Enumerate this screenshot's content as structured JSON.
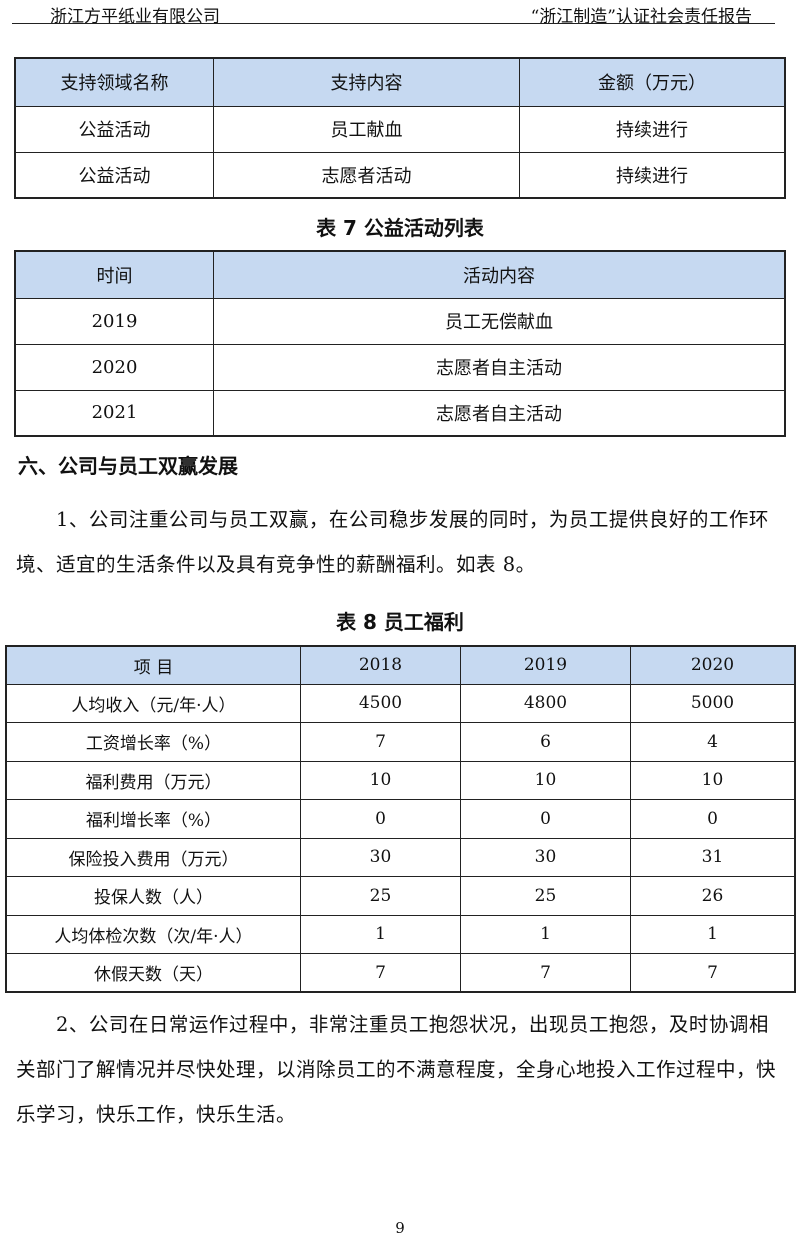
{
  "header": {
    "left": "浙江方平纸业有限公司",
    "right": "“浙江制造”认证社会责任报告"
  },
  "table6": {
    "headers": [
      "支持领域名称",
      "支持内容",
      "金额（万元）"
    ],
    "rows": [
      [
        "公益活动",
        "员工献血",
        "持续进行"
      ],
      [
        "公益活动",
        "志愿者活动",
        "持续进行"
      ]
    ]
  },
  "table7": {
    "caption": "表 7 公益活动列表",
    "headers": [
      "时间",
      "活动内容"
    ],
    "rows": [
      [
        "2019",
        "员工无偿献血"
      ],
      [
        "2020",
        "志愿者自主活动"
      ],
      [
        "2021",
        "志愿者自主活动"
      ]
    ]
  },
  "section": {
    "heading": "六、公司与员工双赢发展",
    "para1": "1、公司注重公司与员工双赢，在公司稳步发展的同时，为员工提供良好的工作环境、适宜的生活条件以及具有竞争性的薪酬福利。如表 8。",
    "para2": "2、公司在日常运作过程中，非常注重员工抱怨状况，出现员工抱怨，及时协调相关部门了解情况并尽快处理，以消除员工的不满意程度，全身心地投入工作过程中，快乐学习，快乐工作，快乐生活。"
  },
  "table8": {
    "caption": "表 8 员工福利",
    "headers": [
      "项 目",
      "2018",
      "2019",
      "2020"
    ],
    "rows": [
      [
        "人均收入（元/年·人）",
        "4500",
        "4800",
        "5000"
      ],
      [
        "工资增长率（%）",
        "7",
        "6",
        "4"
      ],
      [
        "福利费用（万元）",
        "10",
        "10",
        "10"
      ],
      [
        "福利增长率（%）",
        "0",
        "0",
        "0"
      ],
      [
        "保险投入费用（万元）",
        "30",
        "30",
        "31"
      ],
      [
        "投保人数（人）",
        "25",
        "25",
        "26"
      ],
      [
        "人均体检次数（次/年·人）",
        "1",
        "1",
        "1"
      ],
      [
        "休假天数（天）",
        "7",
        "7",
        "7"
      ]
    ]
  },
  "page_number": "9",
  "colors": {
    "table_header_fill": "#c6d9f1"
  }
}
